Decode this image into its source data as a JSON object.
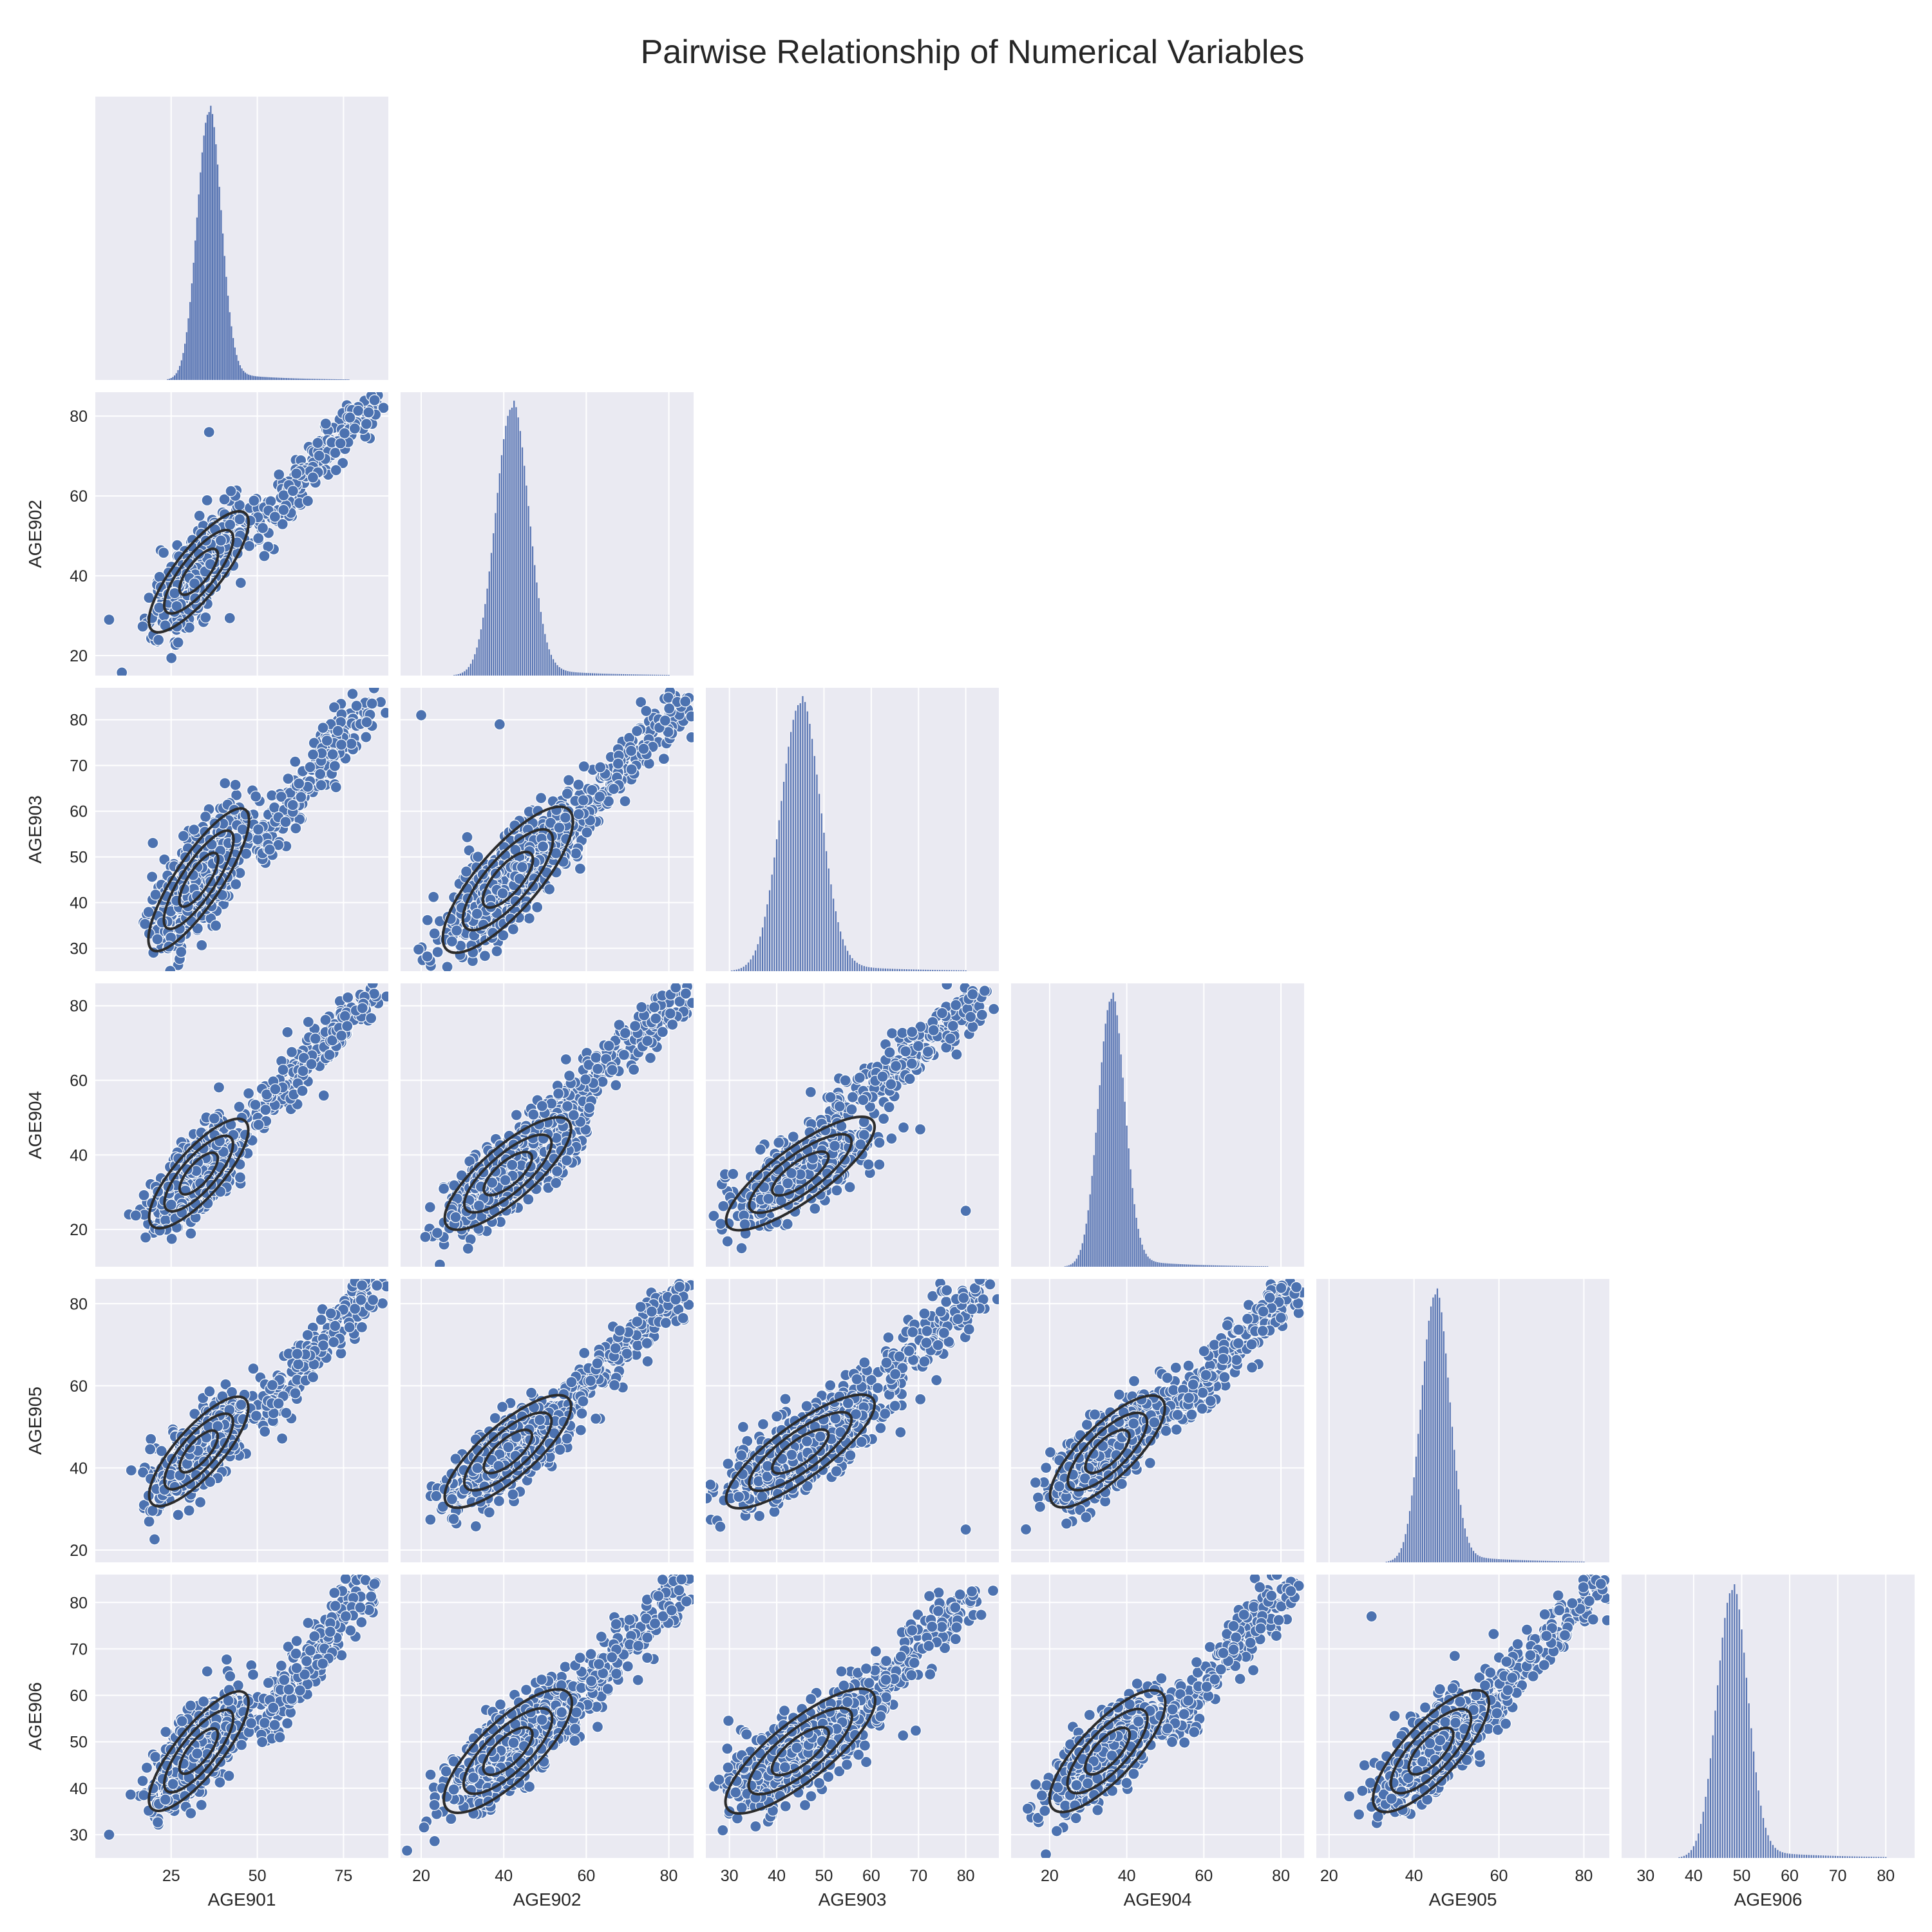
{
  "title": "Pairwise Relationship of Numerical Variables",
  "colors": {
    "background": "#eaeaf2",
    "grid": "#ffffff",
    "points": "#4c72b0",
    "point_edge": "#ffffff",
    "kde": "#2b2b2b",
    "hist": "#5875b3"
  },
  "chart_data": {
    "type": "scatter",
    "layout": "pairplot-lower-triangle",
    "diag_kind": "hist",
    "overlay": "kde-contours",
    "grid": true,
    "variables": [
      {
        "name": "AGE901",
        "ticks": [
          25,
          50,
          75
        ],
        "range": [
          3,
          88
        ],
        "mean": 33,
        "sd": 4.2
      },
      {
        "name": "AGE902",
        "ticks": [
          20,
          40,
          60,
          80
        ],
        "range": [
          15,
          86
        ],
        "mean": 41,
        "sd": 4.6
      },
      {
        "name": "AGE903",
        "ticks": [
          30,
          40,
          50,
          60,
          70,
          80
        ],
        "range": [
          25,
          87
        ],
        "mean": 45,
        "sd": 4.8
      },
      {
        "name": "AGE904",
        "ticks": [
          20,
          40,
          60,
          80
        ],
        "range": [
          10,
          86
        ],
        "mean": 35,
        "sd": 4.4
      },
      {
        "name": "AGE905",
        "ticks": [
          20,
          40,
          60,
          80
        ],
        "range": [
          17,
          86
        ],
        "mean": 44,
        "sd": 4.0
      },
      {
        "name": "AGE906",
        "ticks": [
          30,
          40,
          50,
          60,
          70,
          80
        ],
        "range": [
          25,
          86
        ],
        "mean": 48,
        "sd": 3.9
      }
    ],
    "diagonal_histograms": [
      {
        "variable": "AGE901",
        "peak": 36,
        "spread": 3.5,
        "tail_to": 80
      },
      {
        "variable": "AGE902",
        "peak": 42,
        "spread": 4.0,
        "tail_to": 80
      },
      {
        "variable": "AGE903",
        "peak": 45,
        "spread": 4.2,
        "tail_to": 80
      },
      {
        "variable": "AGE904",
        "peak": 36,
        "spread": 3.4,
        "tail_to": 80
      },
      {
        "variable": "AGE905",
        "peak": 45,
        "spread": 3.3,
        "tail_to": 80
      },
      {
        "variable": "AGE906",
        "peak": 48,
        "spread": 3.2,
        "tail_to": 80
      }
    ],
    "notable_points": [
      {
        "x_var": "AGE901",
        "y_var": "AGE902",
        "x": 36,
        "y": 76
      },
      {
        "x_var": "AGE901",
        "y_var": "AGE902",
        "x": 7,
        "y": 29
      },
      {
        "x_var": "AGE901",
        "y_var": "AGE902",
        "x": 84,
        "y": 84
      },
      {
        "x_var": "AGE902",
        "y_var": "AGE903",
        "x": 20,
        "y": 81
      },
      {
        "x_var": "AGE902",
        "y_var": "AGE903",
        "x": 39,
        "y": 79
      },
      {
        "x_var": "AGE902",
        "y_var": "AGE903",
        "x": 84,
        "y": 84
      },
      {
        "x_var": "AGE903",
        "y_var": "AGE904",
        "x": 80,
        "y": 25
      },
      {
        "x_var": "AGE903",
        "y_var": "AGE904",
        "x": 84,
        "y": 84
      },
      {
        "x_var": "AGE903",
        "y_var": "AGE905",
        "x": 80,
        "y": 25
      },
      {
        "x_var": "AGE904",
        "y_var": "AGE905",
        "x": 84,
        "y": 84
      },
      {
        "x_var": "AGE905",
        "y_var": "AGE906",
        "x": 30,
        "y": 77
      },
      {
        "x_var": "AGE905",
        "y_var": "AGE906",
        "x": 84,
        "y": 84
      },
      {
        "x_var": "AGE901",
        "y_var": "AGE906",
        "x": 7,
        "y": 30
      },
      {
        "x_var": "AGE901",
        "y_var": "AGE906",
        "x": 84,
        "y": 84
      }
    ]
  }
}
